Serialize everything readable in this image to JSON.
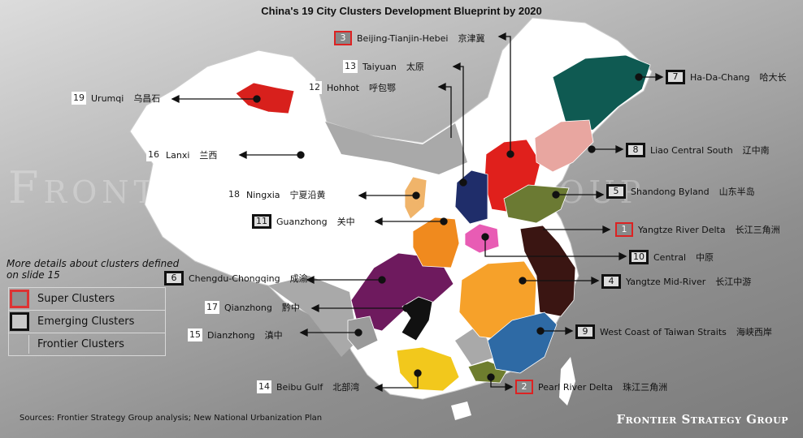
{
  "title": "China's 19 City Clusters Development Blueprint by 2020",
  "watermark": "Frontier Strategy Group",
  "note": "More details about clusters defined on slide 15",
  "legend": [
    {
      "label": "Super Clusters",
      "type": "super"
    },
    {
      "label": "Emerging Clusters",
      "type": "emerging"
    },
    {
      "label": "Frontier Clusters",
      "type": "frontier"
    }
  ],
  "clusters": [
    {
      "num": "1",
      "name": "Yangtze River Delta",
      "cn": "长江三角洲",
      "type": "super",
      "color": "#3a1512"
    },
    {
      "num": "2",
      "name": "Pearl River Delta",
      "cn": "珠江三角洲",
      "type": "super",
      "color": "#6e7d2e"
    },
    {
      "num": "3",
      "name": "Beijing-Tianjin-Hebei",
      "cn": "京津冀",
      "type": "super",
      "color": "#e0201c"
    },
    {
      "num": "4",
      "name": "Yangtze Mid-River",
      "cn": "长江中游",
      "type": "emerging",
      "color": "#f6a12a"
    },
    {
      "num": "5",
      "name": "Shandong Byland",
      "cn": "山东半岛",
      "type": "emerging",
      "color": "#6b7a33"
    },
    {
      "num": "6",
      "name": "Chengdu-Chongqing",
      "cn": "成渝",
      "type": "emerging",
      "color": "#6e1a5e"
    },
    {
      "num": "7",
      "name": "Ha-Da-Chang",
      "cn": "哈大长",
      "type": "emerging",
      "color": "#0f5a52"
    },
    {
      "num": "8",
      "name": "Liao Central South",
      "cn": "辽中南",
      "type": "emerging",
      "color": "#e8a6a0"
    },
    {
      "num": "9",
      "name": "West Coast of Taiwan Straits",
      "cn": "海峡西岸",
      "type": "emerging",
      "color": "#2e6aa5"
    },
    {
      "num": "10",
      "name": "Central",
      "cn": "中原",
      "type": "emerging",
      "color": "#e85cb4"
    },
    {
      "num": "11",
      "name": "Guanzhong",
      "cn": "关中",
      "type": "emerging",
      "color": "#f08a1e"
    },
    {
      "num": "12",
      "name": "Hohhot",
      "cn": "呼包鄂",
      "type": "frontier",
      "color": "#bdbdbd"
    },
    {
      "num": "13",
      "name": "Taiyuan",
      "cn": "太原",
      "type": "frontier",
      "color": "#1f2d6a"
    },
    {
      "num": "14",
      "name": "Beibu Gulf",
      "cn": "北部湾",
      "type": "frontier",
      "color": "#f2c81c"
    },
    {
      "num": "15",
      "name": "Dianzhong",
      "cn": "滇中",
      "type": "frontier",
      "color": "#9a9a9a"
    },
    {
      "num": "16",
      "name": "Lanxi",
      "cn": "兰西",
      "type": "frontier",
      "color": "#ffffff"
    },
    {
      "num": "17",
      "name": "Qianzhong",
      "cn": "黔中",
      "type": "frontier",
      "color": "#111111"
    },
    {
      "num": "18",
      "name": "Ningxia",
      "cn": "宁夏沿黄",
      "type": "frontier",
      "color": "#f0b46a"
    },
    {
      "num": "19",
      "name": "Urumqi",
      "cn": "乌昌石",
      "type": "frontier",
      "color": "#d8201c"
    }
  ],
  "sources": "Sources: Frontier Strategy Group analysis; New National Urbanization Plan",
  "logo": "Frontier Strategy Group"
}
